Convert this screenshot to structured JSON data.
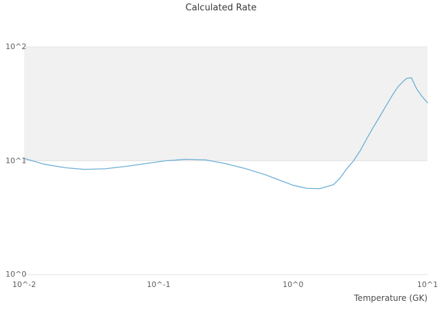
{
  "chart_data": {
    "type": "line",
    "title": "Calculated Rate",
    "xlabel": "Temperature (GK)",
    "ylabel": "",
    "x_scale": "log",
    "y_scale": "log",
    "xlim": [
      0.01,
      10
    ],
    "ylim": [
      1,
      100
    ],
    "x_tick_values": [
      0.01,
      0.1,
      1,
      10
    ],
    "x_tick_labels": [
      "10^-2",
      "10^-1",
      "10^0",
      "10^1"
    ],
    "y_tick_values": [
      1,
      10,
      100
    ],
    "y_tick_labels": [
      "10^0",
      "10^1",
      "10^2"
    ],
    "grid": "horizontal",
    "gridline_color": "#e2e2e2",
    "shaded_band": {
      "y_from": 10,
      "y_to": 100,
      "color": "#f1f1f1"
    },
    "line_color": "#6baed6",
    "series": [
      {
        "name": "calculated-rate",
        "x": [
          0.01,
          0.0141,
          0.02,
          0.0282,
          0.0398,
          0.0562,
          0.0794,
          0.112,
          0.158,
          0.224,
          0.316,
          0.447,
          0.631,
          0.794,
          1.0,
          1.26,
          1.58,
          2.0,
          2.24,
          2.51,
          2.82,
          3.16,
          3.55,
          3.98,
          4.47,
          5.01,
          5.5,
          6.03,
          6.61,
          7.01,
          7.59,
          8.32,
          9.12,
          10.0
        ],
        "y": [
          10.5,
          9.33,
          8.71,
          8.41,
          8.51,
          8.91,
          9.44,
          10.0,
          10.3,
          10.2,
          9.44,
          8.51,
          7.5,
          6.76,
          6.1,
          5.73,
          5.69,
          6.17,
          7.08,
          8.51,
          10.0,
          12.3,
          15.8,
          20.0,
          25.1,
          31.6,
          38.0,
          44.7,
          50.1,
          53.1,
          53.7,
          42.7,
          36.7,
          32.4
        ]
      }
    ]
  }
}
